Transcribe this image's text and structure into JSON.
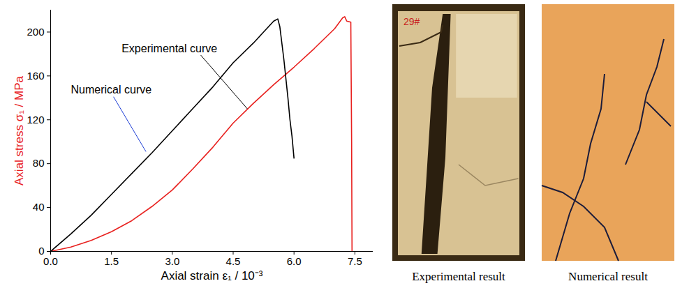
{
  "chart_data": {
    "type": "line",
    "xlabel": "Axial strain ε₁ / 10⁻³",
    "ylabel": "Axial stress σ₁ / MPa",
    "xlim": [
      0,
      7.95
    ],
    "ylim": [
      0,
      220
    ],
    "xticks": [
      {
        "value": 0,
        "label": "0.0"
      },
      {
        "value": 1.5,
        "label": "1.5"
      },
      {
        "value": 3,
        "label": "3.0"
      },
      {
        "value": 4.5,
        "label": "4.5"
      },
      {
        "value": 6,
        "label": "6.0"
      },
      {
        "value": 7.5,
        "label": "7.5"
      }
    ],
    "yticks": [
      0,
      40,
      80,
      120,
      160,
      200
    ],
    "grid": false,
    "series": [
      {
        "name": "Experimental curve",
        "color": "#e8201e",
        "x": [
          0,
          0.5,
          1,
          1.5,
          2,
          2.5,
          3,
          3.5,
          4,
          4.5,
          5,
          5.5,
          6,
          6.5,
          7,
          7.2,
          7.25,
          7.3,
          7.4,
          7.42,
          7.43
        ],
        "values": [
          0,
          4,
          10,
          18,
          28,
          41,
          56,
          75,
          95,
          117,
          135,
          152,
          168,
          185,
          203,
          213,
          214,
          210,
          209,
          100,
          0
        ]
      },
      {
        "name": "Numerical curve",
        "color": "#000000",
        "x": [
          0,
          0.5,
          1,
          1.5,
          2,
          2.5,
          3,
          3.5,
          4,
          4.5,
          5,
          5.3,
          5.5,
          5.6,
          5.65,
          5.75,
          5.85,
          5.9,
          5.95,
          6.0
        ],
        "values": [
          0,
          16,
          33,
          52,
          71,
          90,
          110,
          130,
          150,
          172,
          190,
          202,
          210,
          212,
          205,
          175,
          140,
          120,
          105,
          85
        ]
      }
    ],
    "annotations": [
      {
        "text": "Experimental curve",
        "series": "Experimental curve"
      },
      {
        "text": "Numerical curve",
        "series": "Numerical curve"
      }
    ]
  },
  "panels": [
    {
      "caption": "Experimental result",
      "label": "29#"
    },
    {
      "caption": "Numerical result"
    }
  ]
}
